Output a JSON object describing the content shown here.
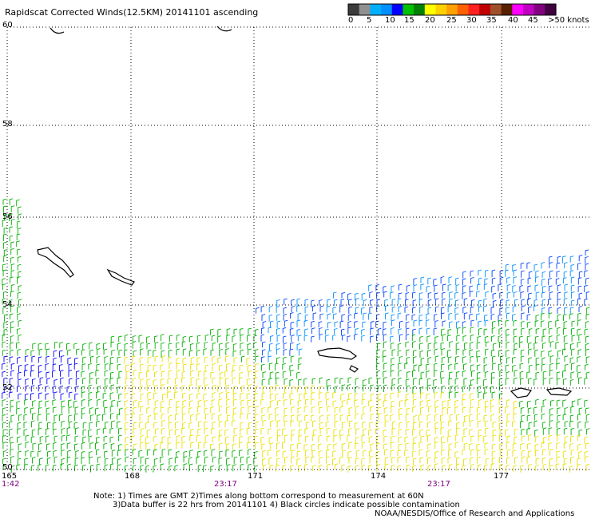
{
  "title": "Rapidscat Corrected Winds(12.5KM) 20141101 ascending",
  "legend": {
    "colors": [
      "#3c3c3c",
      "#909090",
      "#00b0ff",
      "#0090ff",
      "#0000ff",
      "#00c000",
      "#008000",
      "#ffff00",
      "#ffd000",
      "#ffa000",
      "#ff6000",
      "#ff2020",
      "#c00000",
      "#a05028",
      "#582000",
      "#ff00ff",
      "#c000c0",
      "#800080",
      "#400040"
    ],
    "labels": [
      "0",
      "5",
      "10",
      "15",
      "20",
      "25",
      "30",
      "35",
      "40",
      "45",
      ">50 knots"
    ]
  },
  "axes": {
    "lat_labels": [
      "60",
      "58",
      "56",
      "54",
      "52",
      "50"
    ],
    "lon_labels": [
      "165",
      "168",
      "171",
      "174",
      "177"
    ]
  },
  "times": [
    "1:42",
    "23:17",
    "23:17"
  ],
  "notes": {
    "line1": "Note: 1) Times are GMT 2)Times along bottom correspond to measurement at 60N",
    "line2": "3)Data buffer is 22 hrs from 20141101 4) Black circles indicate possible contamination",
    "line3": "NOAA/NESDIS/Office of Research and Applications"
  }
}
